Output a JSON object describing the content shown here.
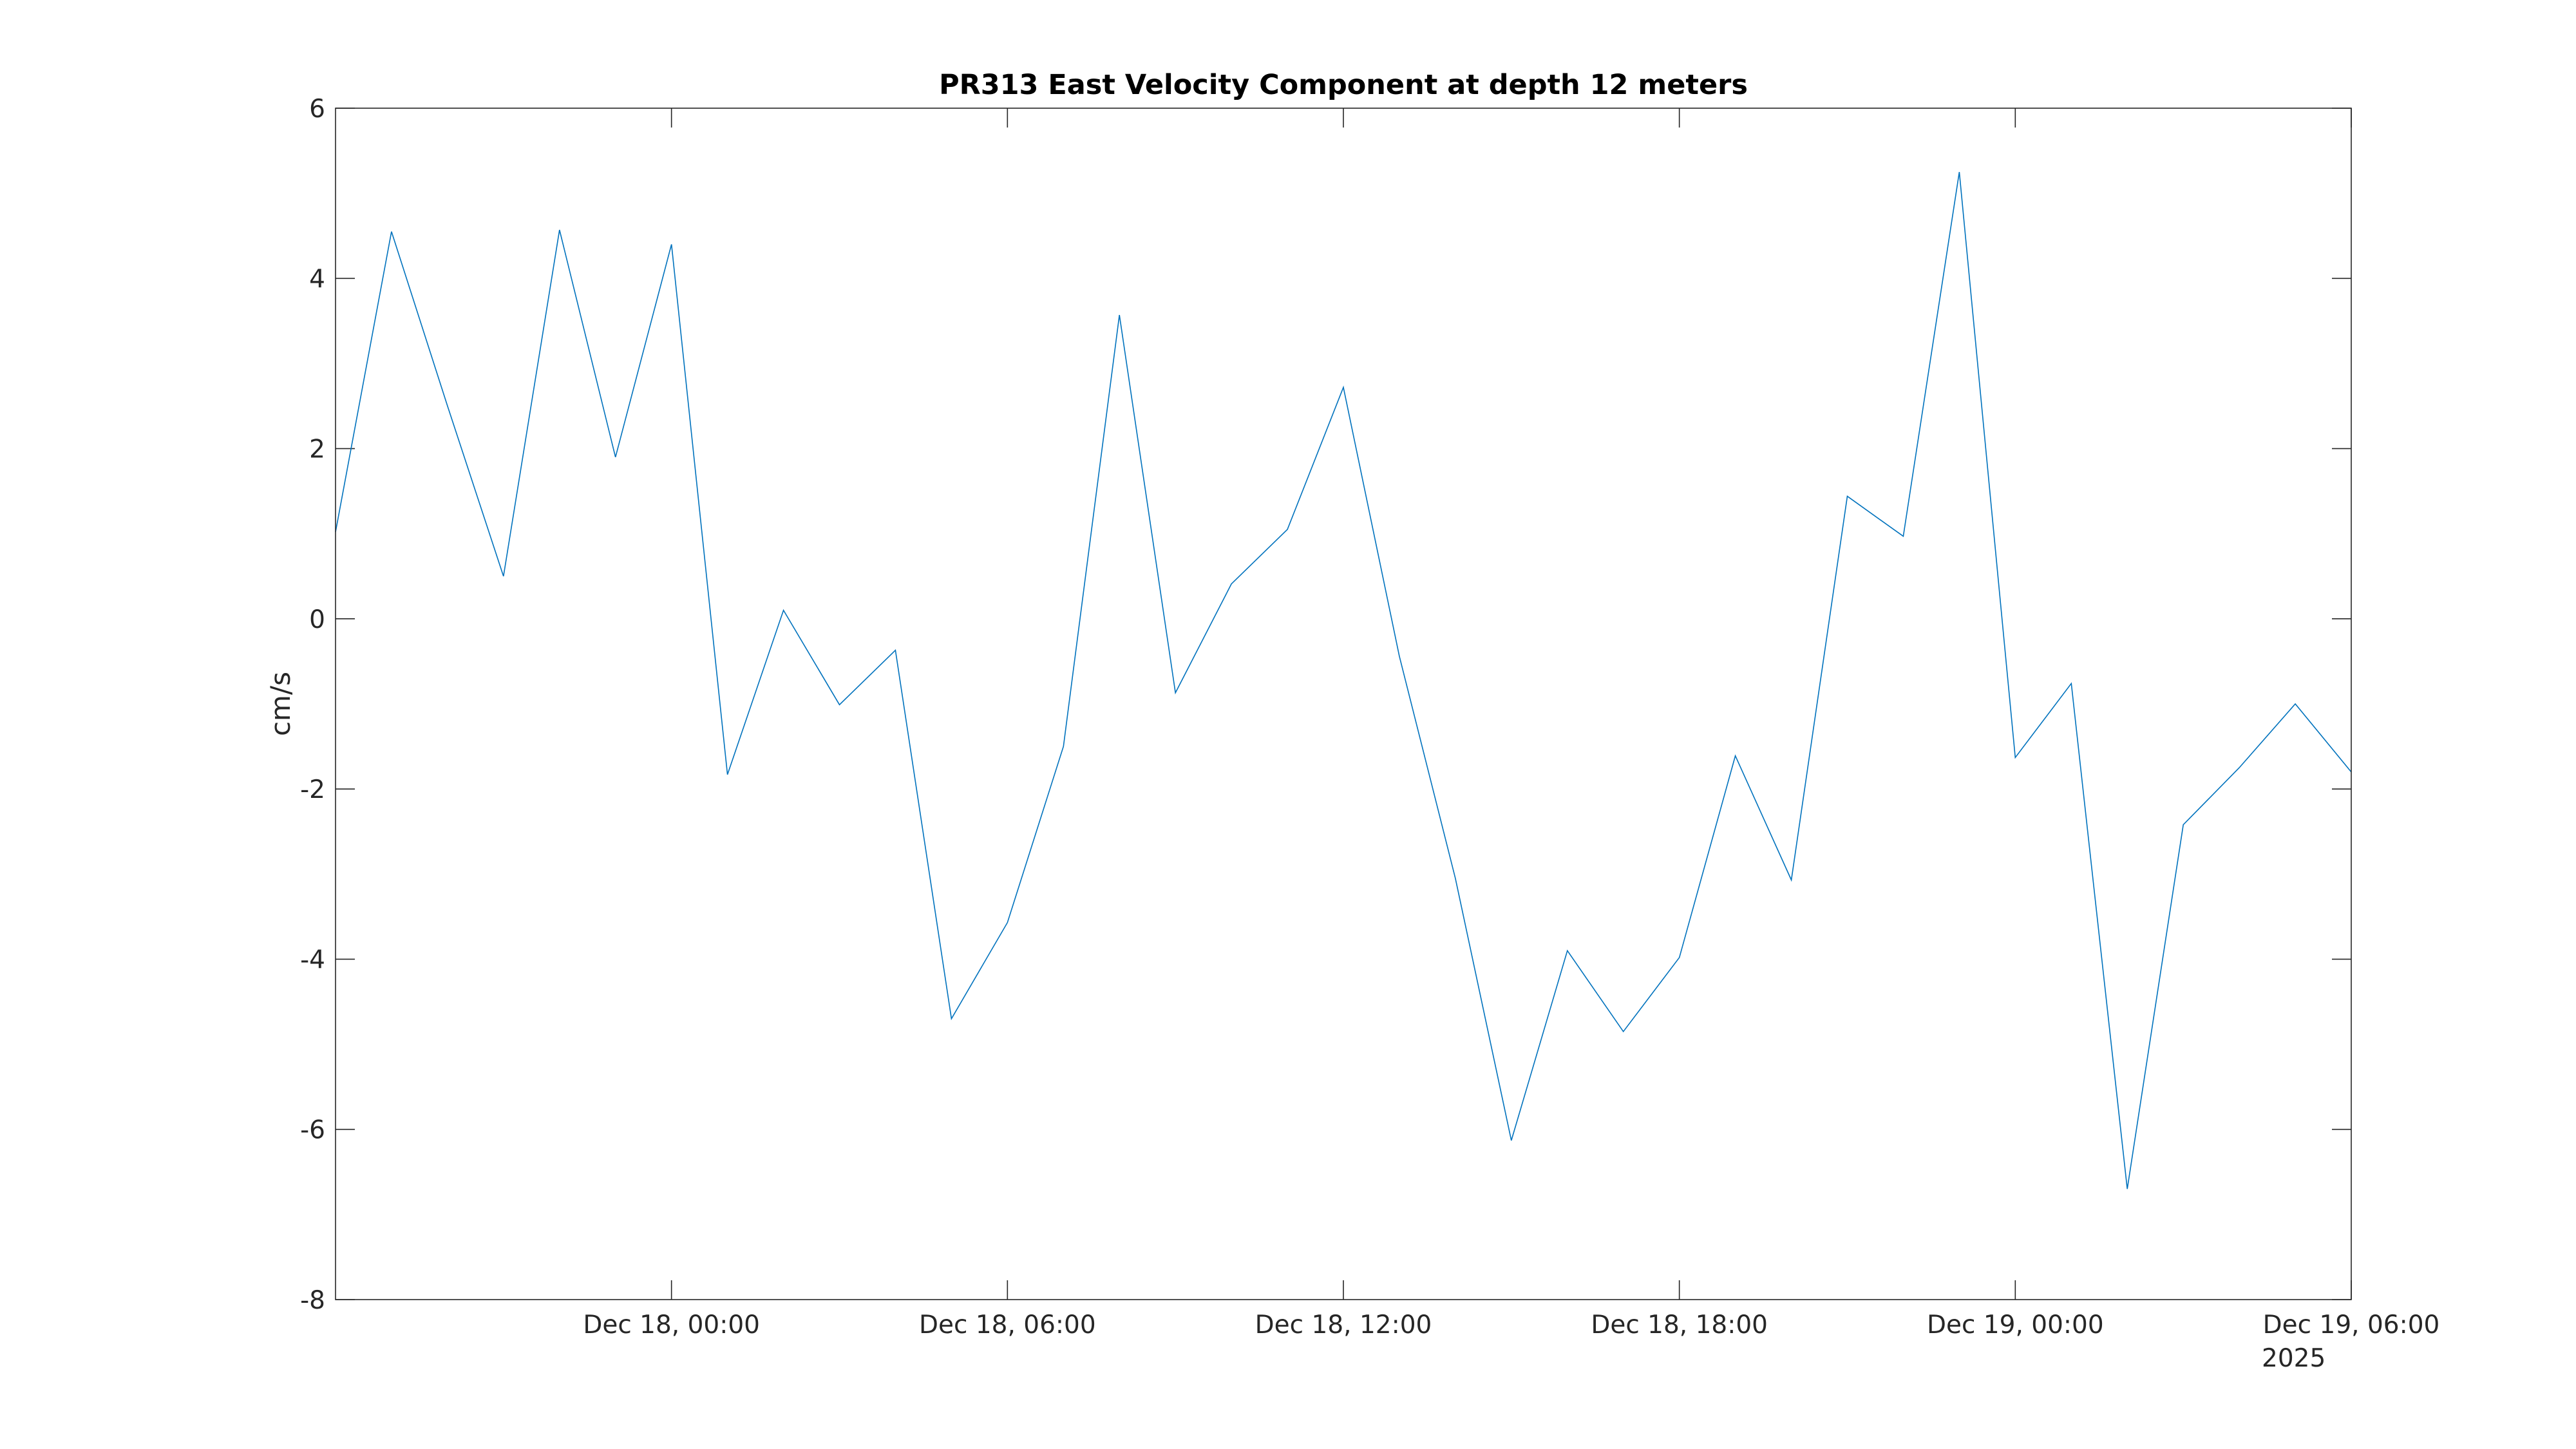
{
  "chart_data": {
    "type": "line",
    "title": "PR313 East Velocity Component at depth 12 meters",
    "xlabel": "",
    "ylabel": "cm/s",
    "x_axis_kind": "time",
    "xlim": [
      "2025-12-17 18:00",
      "2025-12-19 06:00"
    ],
    "ylim": [
      -8,
      6
    ],
    "x_tick_labels": [
      {
        "value": "2025-12-18 00:00",
        "label": "Dec 18, 00:00"
      },
      {
        "value": "2025-12-18 06:00",
        "label": "Dec 18, 06:00"
      },
      {
        "value": "2025-12-18 12:00",
        "label": "Dec 18, 12:00"
      },
      {
        "value": "2025-12-18 18:00",
        "label": "Dec 18, 18:00"
      },
      {
        "value": "2025-12-19 00:00",
        "label": "Dec 19, 00:00"
      },
      {
        "value": "2025-12-19 06:00",
        "label": "Dec 19, 06:00"
      }
    ],
    "x_secondary_label": "2025",
    "y_ticks": [
      6,
      4,
      2,
      0,
      -2,
      -4,
      -6,
      -8
    ],
    "grid": false,
    "series": [
      {
        "color": "#0072bd",
        "x": [
          "2025-12-17 18:00",
          "2025-12-17 19:00",
          "2025-12-17 20:00",
          "2025-12-17 21:00",
          "2025-12-17 22:00",
          "2025-12-17 23:00",
          "2025-12-18 00:00",
          "2025-12-18 01:00",
          "2025-12-18 02:00",
          "2025-12-18 03:00",
          "2025-12-18 04:00",
          "2025-12-18 05:00",
          "2025-12-18 06:00",
          "2025-12-18 07:00",
          "2025-12-18 08:00",
          "2025-12-18 09:00",
          "2025-12-18 10:00",
          "2025-12-18 11:00",
          "2025-12-18 12:00",
          "2025-12-18 13:00",
          "2025-12-18 14:00",
          "2025-12-18 15:00",
          "2025-12-18 16:00",
          "2025-12-18 17:00",
          "2025-12-18 18:00",
          "2025-12-18 19:00",
          "2025-12-18 20:00",
          "2025-12-18 21:00",
          "2025-12-18 22:00",
          "2025-12-18 23:00",
          "2025-12-19 00:00",
          "2025-12-19 01:00",
          "2025-12-19 02:00",
          "2025-12-19 03:00",
          "2025-12-19 04:00",
          "2025-12-19 05:00",
          "2025-12-19 06:00"
        ],
        "y": [
          1.02,
          4.55,
          2.5,
          0.5,
          4.57,
          1.9,
          4.4,
          -1.83,
          0.1,
          -1.01,
          -0.37,
          -4.7,
          -3.57,
          -1.5,
          3.57,
          -0.87,
          0.41,
          1.05,
          2.72,
          -0.44,
          -3.05,
          -6.13,
          -3.9,
          -4.85,
          -3.98,
          -1.61,
          -3.07,
          1.44,
          0.97,
          5.25,
          -1.63,
          -0.76,
          -6.7,
          -2.42,
          -1.75,
          -1.0,
          -1.8
        ]
      }
    ]
  }
}
